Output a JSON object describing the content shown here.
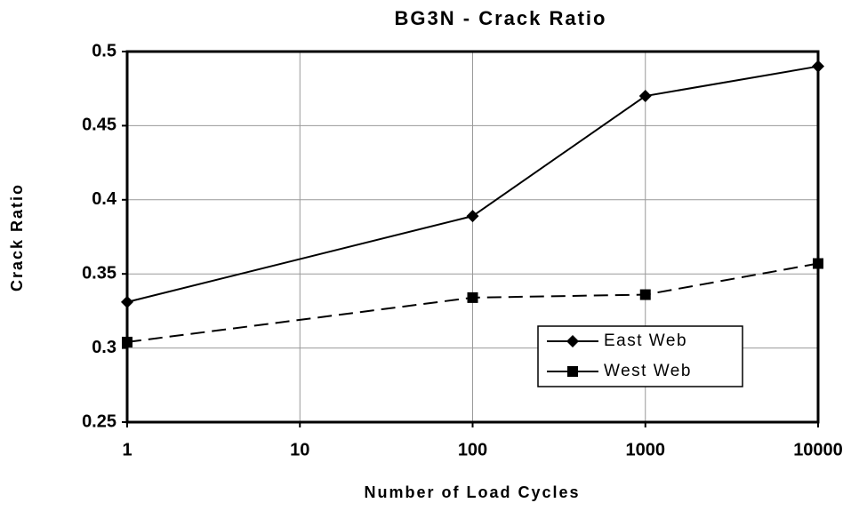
{
  "chart_data": {
    "type": "line",
    "title": "BG3N - Crack Ratio",
    "x_label": "Number of Load Cycles",
    "y_label": "Crack Ratio",
    "x": [
      1,
      100,
      1000,
      10000
    ],
    "series": [
      {
        "name": "East Web",
        "color": "#000000",
        "dash": "solid",
        "marker": "diamond",
        "values": [
          0.331,
          0.389,
          0.47,
          0.49
        ]
      },
      {
        "name": "West Web",
        "color": "#000000",
        "dash": "dashed",
        "marker": "square",
        "values": [
          0.304,
          0.334,
          0.336,
          0.357
        ]
      }
    ],
    "xscale": "log",
    "xlim": [
      1,
      10000
    ],
    "xticks": [
      1,
      10,
      100,
      1000,
      10000
    ],
    "ylim": [
      0.25,
      0.5
    ],
    "yticks": [
      0.25,
      0.3,
      0.35,
      0.4,
      0.45,
      0.5
    ],
    "grid": true,
    "legend": "lower right"
  }
}
